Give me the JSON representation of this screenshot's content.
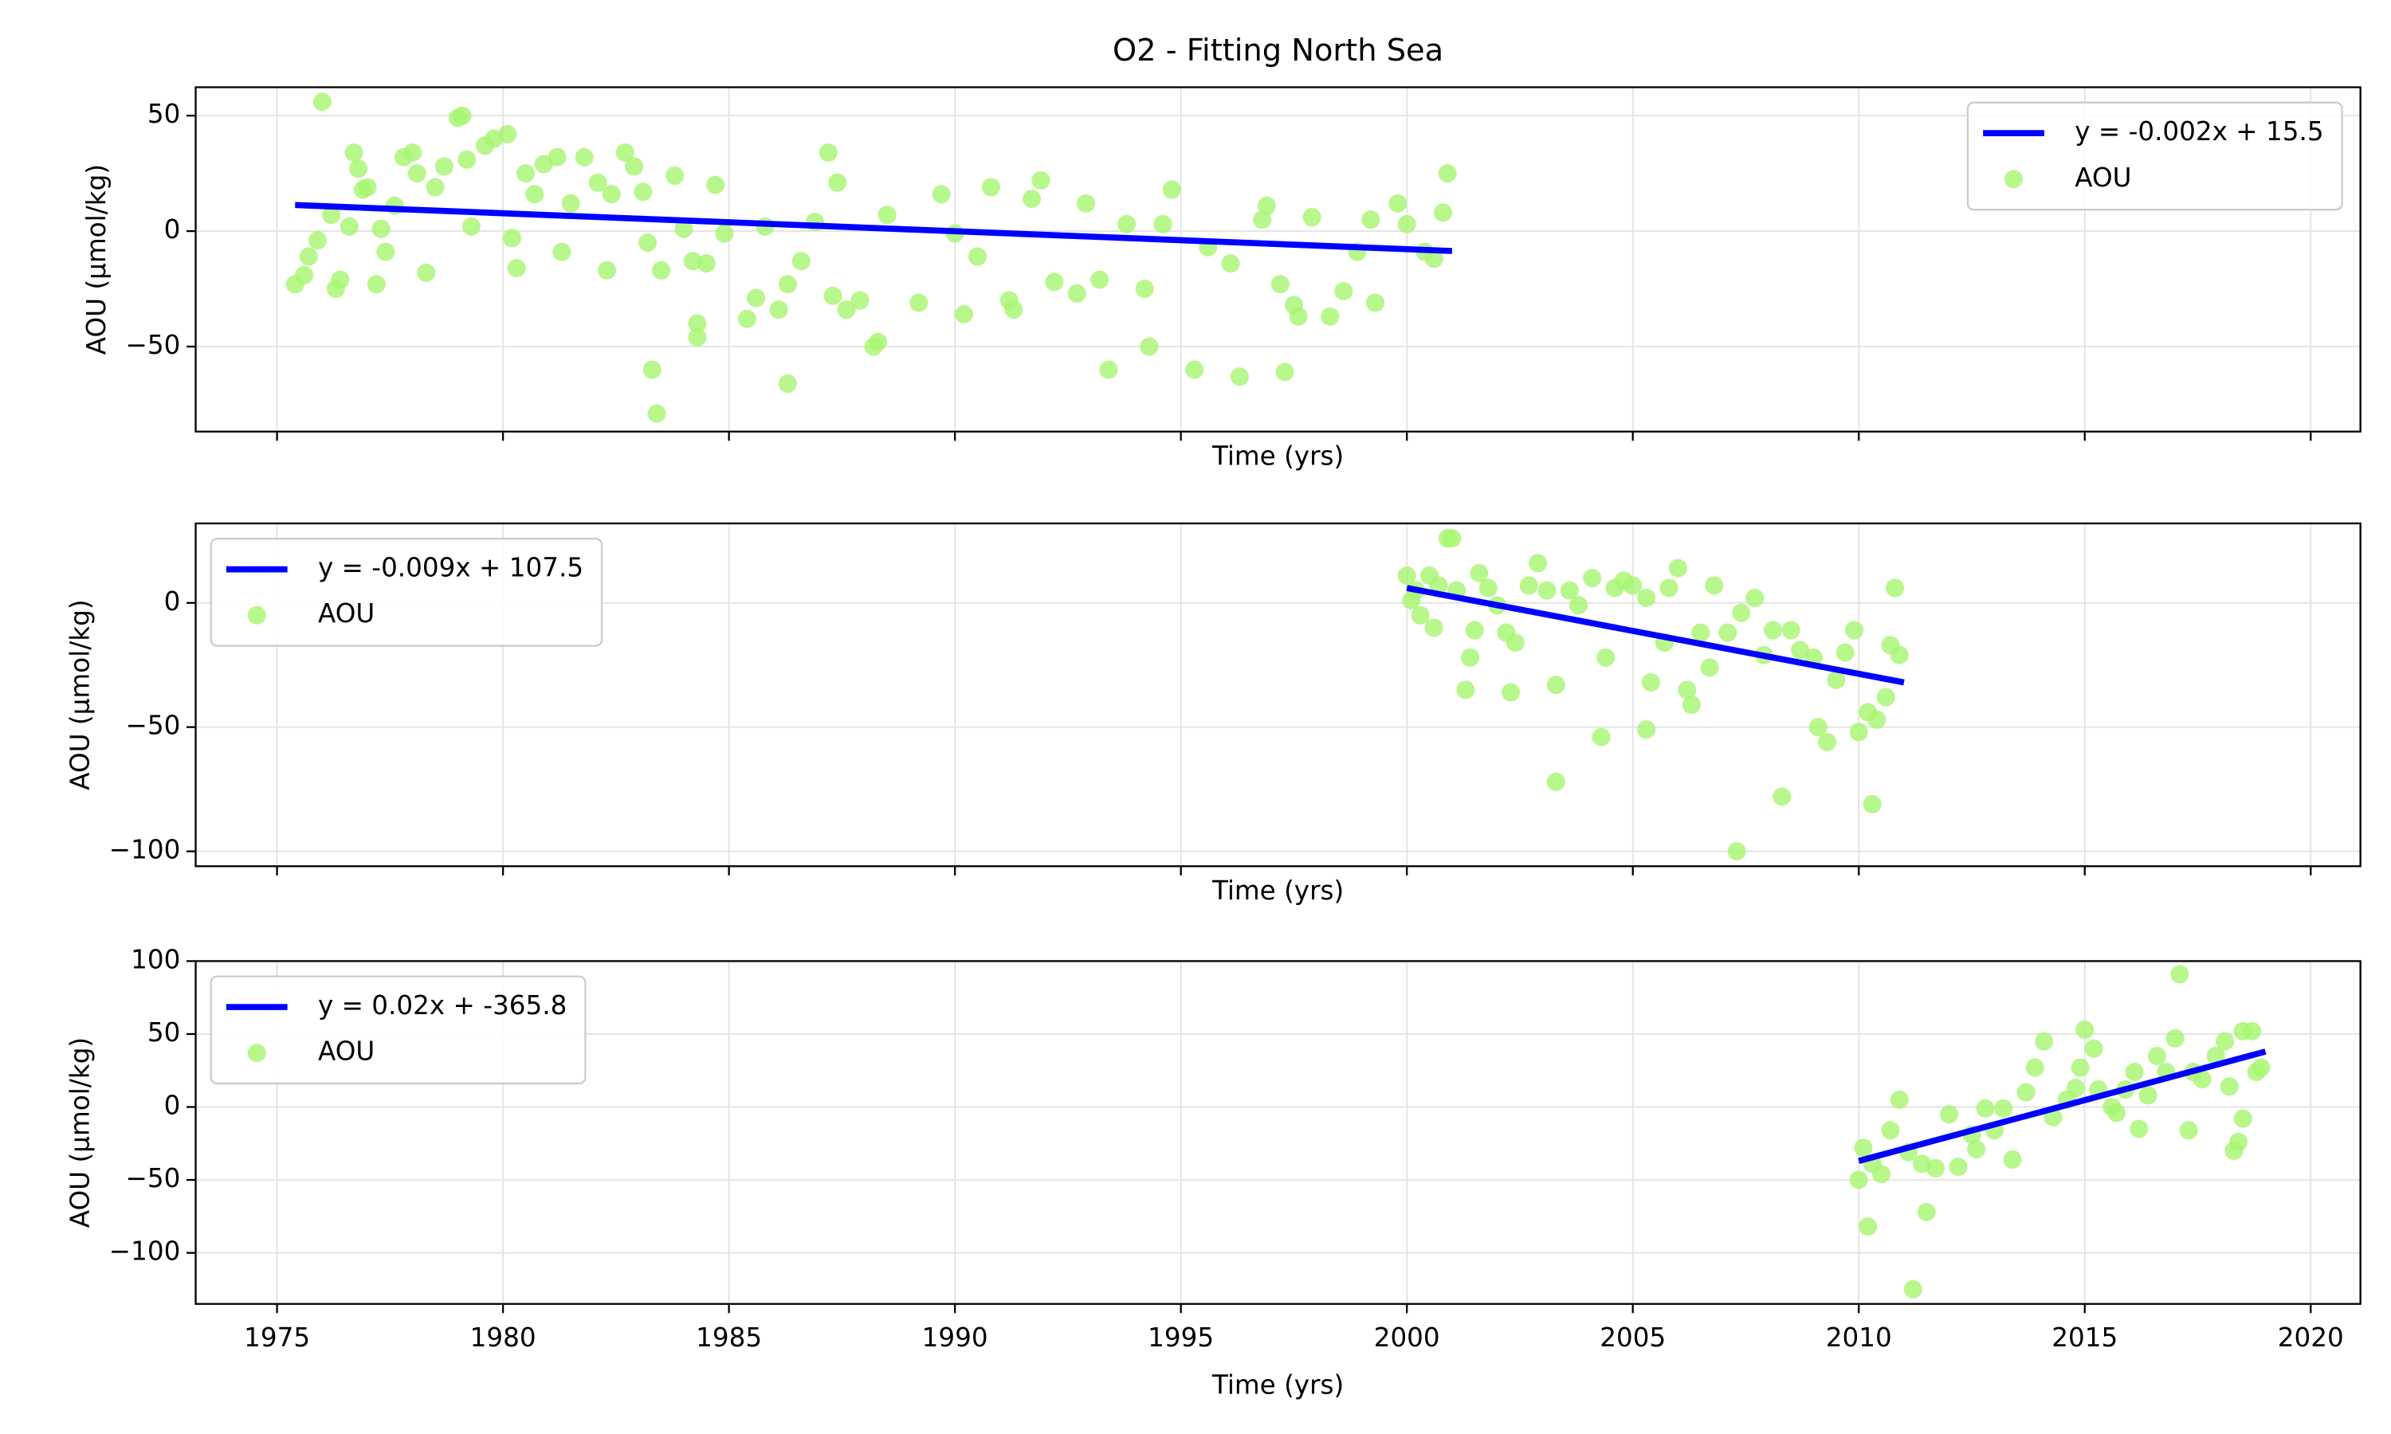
{
  "chart_data": [
    {
      "type": "scatter",
      "title": "O2 - Fitting North Sea",
      "xlabel": "Time (yrs)",
      "ylabel": "AOU (µmol/kg)",
      "xlim": [
        1973.2,
        2021.1
      ],
      "xticks": [
        1975,
        1980,
        1985,
        1990,
        1995,
        2000,
        2005,
        2010,
        2015,
        2020
      ],
      "xticklabels": false,
      "ylim": [
        -86.8,
        62.3
      ],
      "yticks": [
        {
          "value": -50,
          "label": "−50"
        },
        0,
        50
      ],
      "grid": true,
      "legend": "upper right",
      "series": [
        {
          "name": "y = -0.002x + 15.5",
          "type": "line",
          "color": "#0000ff",
          "x": [
            1975.4,
            2001.0
          ],
          "values": [
            11.3,
            -8.6
          ]
        },
        {
          "name": "AOU",
          "type": "scatter",
          "color": "#a6f56f",
          "x": [
            1975.4,
            1975.6,
            1975.7,
            1975.9,
            1976.0,
            1976.2,
            1976.3,
            1976.4,
            1976.6,
            1976.7,
            1976.8,
            1976.9,
            1977.0,
            1977.2,
            1977.3,
            1977.4,
            1977.6,
            1977.8,
            1978.0,
            1978.1,
            1978.3,
            1978.5,
            1978.7,
            1979.0,
            1979.1,
            1979.2,
            1979.3,
            1979.6,
            1979.8,
            1980.1,
            1980.2,
            1980.3,
            1980.5,
            1980.7,
            1980.9,
            1981.2,
            1981.3,
            1981.5,
            1981.8,
            1982.1,
            1982.3,
            1982.4,
            1982.7,
            1982.9,
            1983.1,
            1983.2,
            1983.3,
            1983.4,
            1983.5,
            1983.8,
            1984.0,
            1984.2,
            1984.3,
            1984.3,
            1984.5,
            1984.7,
            1984.9,
            1985.4,
            1985.6,
            1985.8,
            1986.1,
            1986.3,
            1986.3,
            1986.6,
            1986.9,
            1987.2,
            1987.3,
            1987.4,
            1987.6,
            1987.9,
            1988.2,
            1988.3,
            1988.5,
            1989.2,
            1989.7,
            1990.0,
            1990.2,
            1990.5,
            1990.8,
            1991.2,
            1991.3,
            1991.7,
            1991.9,
            1992.2,
            1992.7,
            1992.9,
            1993.2,
            1993.4,
            1993.8,
            1994.2,
            1994.3,
            1994.6,
            1994.8,
            1995.3,
            1995.6,
            1996.1,
            1996.3,
            1996.8,
            1996.9,
            1997.2,
            1997.3,
            1997.5,
            1997.6,
            1997.9,
            1998.3,
            1998.6,
            1998.9,
            1999.2,
            1999.3,
            1999.8,
            2000.0,
            2000.4,
            2000.6,
            2000.8,
            2000.9
          ],
          "values": [
            -23,
            -19,
            -11,
            -4,
            56,
            7,
            -25,
            -21,
            2,
            34,
            27,
            18,
            19,
            -23,
            1,
            -9,
            11,
            32,
            34,
            25,
            -18,
            19,
            28,
            49,
            50,
            31,
            2,
            37,
            40,
            42,
            -3,
            -16,
            25,
            16,
            29,
            32,
            -9,
            12,
            32,
            21,
            -17,
            16,
            34,
            28,
            17,
            -5,
            -60,
            -79,
            -17,
            24,
            1,
            -13,
            -40,
            -46,
            -14,
            20,
            -1,
            -38,
            -29,
            2,
            -34,
            -23,
            -66,
            -13,
            4,
            34,
            -28,
            21,
            -34,
            -30,
            -50,
            -48,
            7,
            -31,
            16,
            -1,
            -36,
            -11,
            19,
            -30,
            -34,
            14,
            22,
            -22,
            -27,
            12,
            -21,
            -60,
            3,
            -25,
            -50,
            3,
            18,
            -60,
            -7,
            -14,
            -63,
            5,
            11,
            -23,
            -61,
            -32,
            -37,
            6,
            -37,
            -26,
            -9,
            5,
            -31,
            12,
            3,
            -9,
            -12,
            8,
            25
          ]
        }
      ]
    },
    {
      "type": "scatter",
      "xlabel": "Time (yrs)",
      "ylabel": "AOU (µmol/kg)",
      "xlim": [
        1973.2,
        2021.1
      ],
      "xticks": [
        1975,
        1980,
        1985,
        1990,
        1995,
        2000,
        2005,
        2010,
        2015,
        2020
      ],
      "xticklabels": false,
      "ylim": [
        -106,
        32
      ],
      "yticks": [
        {
          "value": -100,
          "label": "−100"
        },
        {
          "value": -50,
          "label": "−50"
        },
        0
      ],
      "grid": true,
      "legend": "upper left",
      "series": [
        {
          "name": "y = -0.009x + 107.5",
          "type": "line",
          "color": "#0000ff",
          "x": [
            2000.0,
            2011.0
          ],
          "values": [
            6,
            -32
          ]
        },
        {
          "name": "AOU",
          "type": "scatter",
          "color": "#a6f56f",
          "x": [
            2000.0,
            2000.1,
            2000.2,
            2000.3,
            2000.5,
            2000.6,
            2000.7,
            2000.9,
            2001.0,
            2001.1,
            2001.3,
            2001.4,
            2001.5,
            2001.6,
            2001.8,
            2002.0,
            2002.2,
            2002.3,
            2002.4,
            2002.7,
            2002.9,
            2003.1,
            2003.3,
            2003.3,
            2003.6,
            2003.8,
            2004.1,
            2004.3,
            2004.4,
            2004.6,
            2004.8,
            2005.0,
            2005.3,
            2005.3,
            2005.4,
            2005.7,
            2005.8,
            2006.0,
            2006.2,
            2006.3,
            2006.5,
            2006.7,
            2006.8,
            2007.1,
            2007.3,
            2007.4,
            2007.7,
            2007.9,
            2008.1,
            2008.3,
            2008.5,
            2008.7,
            2009.0,
            2009.1,
            2009.3,
            2009.5,
            2009.7,
            2009.9,
            2010.0,
            2010.2,
            2010.3,
            2010.4,
            2010.6,
            2010.7,
            2010.8,
            2010.9
          ],
          "values": [
            11,
            1,
            5,
            -5,
            11,
            -10,
            7,
            26,
            26,
            5,
            -35,
            -22,
            -11,
            12,
            6,
            -1,
            -12,
            -36,
            -16,
            7,
            16,
            5,
            -72,
            -33,
            5,
            -1,
            10,
            -54,
            -22,
            6,
            9,
            7,
            2,
            -51,
            -32,
            -16,
            6,
            14,
            -35,
            -41,
            -12,
            -26,
            7,
            -12,
            -100,
            -4,
            2,
            -21,
            -11,
            -78,
            -11,
            -19,
            -22,
            -50,
            -56,
            -31,
            -20,
            -11,
            -52,
            -44,
            -81,
            -47,
            -38,
            -17,
            6,
            -21
          ]
        }
      ]
    },
    {
      "type": "scatter",
      "xlabel": "Time (yrs)",
      "ylabel": "AOU (µmol/kg)",
      "xlim": [
        1973.2,
        2021.1
      ],
      "xticks": [
        1975,
        1980,
        1985,
        1990,
        1995,
        2000,
        2005,
        2010,
        2015,
        2020
      ],
      "xticklabels": true,
      "ylim": [
        -135,
        100
      ],
      "yticks": [
        {
          "value": -100,
          "label": "−100"
        },
        {
          "value": -50,
          "label": "−50"
        },
        0,
        50,
        100
      ],
      "grid": true,
      "legend": "upper left",
      "series": [
        {
          "name": "y = 0.02x + -365.8",
          "type": "line",
          "color": "#0000ff",
          "x": [
            2010.0,
            2019.0
          ],
          "values": [
            -37,
            38
          ]
        },
        {
          "name": "AOU",
          "type": "scatter",
          "color": "#a6f56f",
          "x": [
            2010.0,
            2010.1,
            2010.2,
            2010.3,
            2010.5,
            2010.7,
            2010.9,
            2011.1,
            2011.2,
            2011.4,
            2011.5,
            2011.7,
            2012.0,
            2012.2,
            2012.5,
            2012.6,
            2012.8,
            2013.0,
            2013.2,
            2013.4,
            2013.7,
            2013.9,
            2014.1,
            2014.3,
            2014.6,
            2014.8,
            2014.9,
            2015.0,
            2015.2,
            2015.3,
            2015.6,
            2015.7,
            2015.9,
            2016.1,
            2016.2,
            2016.4,
            2016.6,
            2016.8,
            2017.0,
            2017.1,
            2017.3,
            2017.4,
            2017.6,
            2017.9,
            2018.1,
            2018.2,
            2018.3,
            2018.4,
            2018.5,
            2018.5,
            2018.7,
            2018.8,
            2018.9
          ],
          "values": [
            -50,
            -28,
            -82,
            -39,
            -46,
            -16,
            5,
            -31,
            -125,
            -39,
            -72,
            -42,
            -5,
            -41,
            -19,
            -29,
            -1,
            -16,
            -1,
            -36,
            10,
            27,
            45,
            -7,
            5,
            13,
            27,
            53,
            40,
            12,
            0,
            -4,
            12,
            24,
            -15,
            8,
            35,
            24,
            47,
            91,
            -16,
            24,
            19,
            35,
            45,
            14,
            -30,
            -24,
            -8,
            52,
            52,
            24,
            27
          ]
        }
      ]
    }
  ]
}
